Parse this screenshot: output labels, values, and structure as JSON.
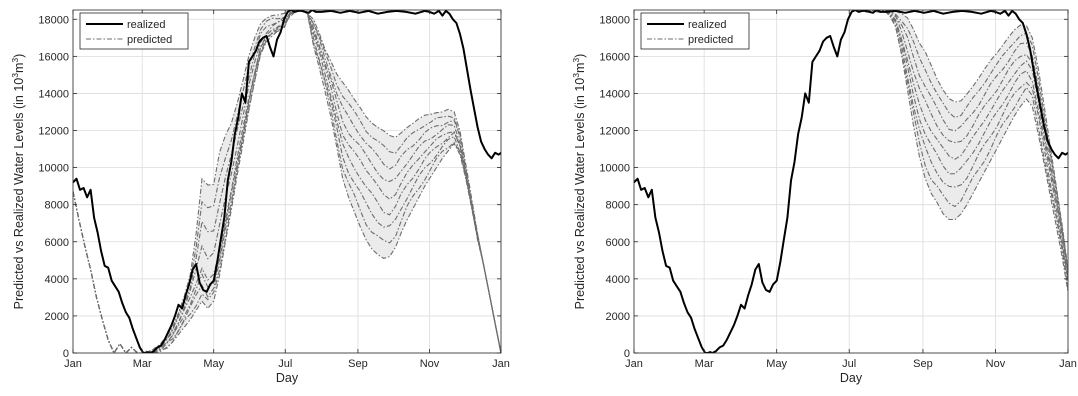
{
  "chart_data": [
    {
      "type": "line",
      "xlabel": "Day",
      "ylabel": "Predicted vs Realized Water Levels (in 10^3 m^3)",
      "ylabel_parts": [
        "Predicted vs Realized Water Levels (in 10",
        "3",
        "m",
        "3",
        ")"
      ],
      "xlim": [
        0,
        365
      ],
      "ylim": [
        0,
        18500
      ],
      "x_ticks": [
        0,
        59,
        120,
        181,
        243,
        304,
        365
      ],
      "x_tick_labels": [
        "Jan",
        "Mar",
        "May",
        "Jul",
        "Sep",
        "Nov",
        "Jan"
      ],
      "y_ticks": [
        0,
        2000,
        4000,
        6000,
        8000,
        10000,
        12000,
        14000,
        16000,
        18000
      ],
      "y_tick_labels": [
        "0",
        "2000",
        "4000",
        "6000",
        "8000",
        "10000",
        "12000",
        "14000",
        "16000",
        "18000"
      ],
      "grid": true,
      "legend_position": "top-left",
      "realized_color": "#000000",
      "predicted_color": "#6e6e6e",
      "band_color": "#ebebeb",
      "series": [
        {
          "name": "realized",
          "style": "solid",
          "x": [
            0,
            3,
            6,
            9,
            12,
            15,
            18,
            21,
            24,
            27,
            30,
            33,
            36,
            39,
            42,
            45,
            48,
            51,
            54,
            57,
            60,
            62,
            64,
            66,
            69,
            72,
            75,
            78,
            81,
            84,
            87,
            90,
            93,
            96,
            99,
            102,
            105,
            108,
            111,
            114,
            117,
            120,
            123,
            126,
            129,
            132,
            135,
            138,
            141,
            144,
            147,
            150,
            153,
            156,
            159,
            162,
            165,
            168,
            171,
            174,
            177,
            180,
            183,
            186,
            189,
            192,
            195,
            198,
            201,
            204,
            207,
            212,
            220,
            228,
            236,
            244,
            252,
            260,
            268,
            276,
            284,
            292,
            300,
            304,
            308,
            312,
            315,
            318,
            321,
            324,
            327,
            330,
            333,
            336,
            339,
            342,
            345,
            348,
            351,
            354,
            357,
            360,
            363,
            365
          ],
          "y": [
            9200,
            9400,
            8800,
            8900,
            8400,
            8800,
            7300,
            6500,
            5500,
            4700,
            4600,
            3900,
            3600,
            3300,
            2700,
            2200,
            1900,
            1300,
            800,
            300,
            0,
            0,
            50,
            0,
            100,
            300,
            400,
            700,
            1100,
            1500,
            2000,
            2600,
            2400,
            3100,
            3700,
            4500,
            4800,
            3800,
            3400,
            3300,
            3700,
            3900,
            4900,
            6100,
            7300,
            9300,
            10300,
            11800,
            12700,
            14000,
            13500,
            15700,
            16000,
            16300,
            16800,
            17000,
            17100,
            16500,
            16000,
            16900,
            17300,
            18000,
            18400,
            18500,
            18400,
            18450,
            18450,
            18400,
            18350,
            18500,
            18400,
            18400,
            18450,
            18350,
            18450,
            18350,
            18450,
            18300,
            18400,
            18450,
            18400,
            18300,
            18450,
            18400,
            18300,
            18450,
            18200,
            18450,
            18300,
            18000,
            17800,
            17200,
            16400,
            15300,
            14200,
            13200,
            12200,
            11400,
            11000,
            10700,
            10500,
            10800,
            10700,
            10800
          ]
        },
        {
          "name": "predicted",
          "style": "dash-dot",
          "center": {
            "x": [
              0,
              5,
              10,
              15,
              20,
              25,
              30,
              35,
              40,
              45,
              50,
              55,
              60,
              63,
              66,
              70,
              75,
              80,
              85,
              90,
              95,
              100,
              105,
              110,
              115,
              120,
              125,
              130,
              135,
              140,
              145,
              150,
              155,
              160,
              165,
              170,
              175,
              180,
              185,
              190,
              195,
              200,
              205,
              210,
              215,
              220,
              225,
              230,
              235,
              240,
              245,
              250,
              255,
              260,
              265,
              270,
              275,
              280,
              285,
              290,
              295,
              300,
              305,
              310,
              315,
              320,
              325,
              330,
              335,
              340,
              345,
              350,
              355,
              360,
              365
            ],
            "y": [
              8700,
              7200,
              5800,
              4500,
              3000,
              1800,
              700,
              0,
              500,
              0,
              300,
              0,
              0,
              0,
              0,
              100,
              300,
              600,
              1000,
              1600,
              2300,
              3000,
              3800,
              4600,
              3900,
              4200,
              5500,
              7200,
              8800,
              10500,
              12100,
              13800,
              15200,
              16500,
              17100,
              17400,
              17600,
              17800,
              18300,
              18500,
              18500,
              18300,
              17400,
              16500,
              15400,
              14300,
              13000,
              11800,
              11200,
              10800,
              10400,
              9900,
              9500,
              9000,
              8500,
              8300,
              8600,
              9200,
              9700,
              10100,
              10500,
              10900,
              11200,
              11500,
              11700,
              11900,
              12000,
              11200,
              9700,
              8000,
              6300,
              4800,
              3200,
              1600,
              0
            ]
          },
          "spread_up": [
            0,
            0,
            0,
            0,
            0,
            0,
            0,
            0,
            0,
            0,
            0,
            0,
            0,
            50,
            100,
            150,
            200,
            300,
            400,
            600,
            800,
            1200,
            2600,
            4800,
            5200,
            4900,
            5300,
            4500,
            3600,
            3000,
            2600,
            2200,
            1800,
            1300,
            1000,
            800,
            600,
            500,
            300,
            100,
            0,
            0,
            600,
            800,
            1000,
            1400,
            2000,
            2800,
            3000,
            2900,
            2800,
            2800,
            2900,
            3200,
            3500,
            3400,
            3000,
            2700,
            2500,
            2300,
            2100,
            1900,
            1700,
            1500,
            1300,
            1200,
            1000,
            800,
            500,
            300,
            100,
            0,
            0,
            0,
            0
          ],
          "spread_down": [
            0,
            0,
            0,
            0,
            0,
            0,
            0,
            0,
            0,
            0,
            0,
            0,
            0,
            0,
            0,
            100,
            200,
            300,
            400,
            600,
            900,
            1200,
            1500,
            1800,
            1500,
            1400,
            1300,
            1200,
            1100,
            900,
            800,
            700,
            500,
            400,
            300,
            300,
            200,
            200,
            100,
            0,
            0,
            0,
            800,
            1100,
            1300,
            1600,
            1900,
            2400,
            2800,
            3200,
            3600,
            3800,
            3900,
            3700,
            3400,
            3100,
            2900,
            2700,
            2500,
            2300,
            2100,
            1900,
            1700,
            1500,
            1200,
            1000,
            700,
            500,
            300,
            200,
            100,
            0,
            0,
            0,
            0
          ],
          "traces": 9
        }
      ]
    },
    {
      "type": "line",
      "xlabel": "Day",
      "ylabel": "Predicted vs Realized Water Levels (in 10^3 m^3)",
      "ylabel_parts": [
        "Predicted vs Realized Water Levels (in 10",
        "3",
        "m",
        "3",
        ")"
      ],
      "xlim": [
        0,
        365
      ],
      "ylim": [
        0,
        18500
      ],
      "x_ticks": [
        0,
        59,
        120,
        181,
        243,
        304,
        365
      ],
      "x_tick_labels": [
        "Jan",
        "Mar",
        "May",
        "Jul",
        "Sep",
        "Nov",
        "Jan"
      ],
      "y_ticks": [
        0,
        2000,
        4000,
        6000,
        8000,
        10000,
        12000,
        14000,
        16000,
        18000
      ],
      "y_tick_labels": [
        "0",
        "2000",
        "4000",
        "6000",
        "8000",
        "10000",
        "12000",
        "14000",
        "16000",
        "18000"
      ],
      "grid": true,
      "legend_position": "top-left",
      "realized_color": "#000000",
      "predicted_color": "#6e6e6e",
      "band_color": "#ebebeb",
      "series": [
        {
          "name": "realized",
          "style": "solid",
          "x": [
            0,
            3,
            6,
            9,
            12,
            15,
            18,
            21,
            24,
            27,
            30,
            33,
            36,
            39,
            42,
            45,
            48,
            51,
            54,
            57,
            60,
            62,
            64,
            66,
            69,
            72,
            75,
            78,
            81,
            84,
            87,
            90,
            93,
            96,
            99,
            102,
            105,
            108,
            111,
            114,
            117,
            120,
            123,
            126,
            129,
            132,
            135,
            138,
            141,
            144,
            147,
            150,
            153,
            156,
            159,
            162,
            165,
            168,
            171,
            174,
            177,
            180,
            183,
            186,
            189,
            192,
            195,
            198,
            201,
            204,
            207,
            212,
            220,
            228,
            236,
            244,
            252,
            260,
            268,
            276,
            284,
            292,
            300,
            304,
            308,
            312,
            315,
            318,
            321,
            324,
            327,
            330,
            333,
            336,
            339,
            342,
            345,
            348,
            351,
            354,
            357,
            360,
            363,
            365
          ],
          "y": [
            9200,
            9400,
            8800,
            8900,
            8400,
            8800,
            7300,
            6500,
            5500,
            4700,
            4600,
            3900,
            3600,
            3300,
            2700,
            2200,
            1900,
            1300,
            800,
            300,
            0,
            0,
            50,
            0,
            100,
            300,
            400,
            700,
            1100,
            1500,
            2000,
            2600,
            2400,
            3100,
            3700,
            4500,
            4800,
            3800,
            3400,
            3300,
            3700,
            3900,
            4900,
            6100,
            7300,
            9300,
            10300,
            11800,
            12700,
            14000,
            13500,
            15700,
            16000,
            16300,
            16800,
            17000,
            17100,
            16500,
            16000,
            16900,
            17300,
            18000,
            18400,
            18500,
            18400,
            18450,
            18450,
            18400,
            18350,
            18500,
            18400,
            18400,
            18450,
            18350,
            18450,
            18350,
            18450,
            18300,
            18400,
            18450,
            18400,
            18300,
            18450,
            18400,
            18300,
            18450,
            18200,
            18450,
            18300,
            18000,
            17800,
            17200,
            16400,
            15300,
            14200,
            13200,
            12200,
            11400,
            11000,
            10700,
            10500,
            10800,
            10700,
            10800
          ]
        },
        {
          "name": "predicted",
          "style": "dash-dot",
          "center": {
            "x": [
              186,
              190,
              195,
              200,
              205,
              210,
              215,
              220,
              225,
              230,
              235,
              240,
              245,
              250,
              255,
              260,
              265,
              270,
              275,
              280,
              285,
              290,
              295,
              300,
              305,
              310,
              315,
              320,
              325,
              330,
              335,
              340,
              345,
              350,
              355,
              360,
              365
            ],
            "y": [
              18500,
              18500,
              18400,
              18500,
              18400,
              18500,
              18300,
              18000,
              17000,
              15800,
              14500,
              13400,
              12600,
              12000,
              11500,
              11000,
              10600,
              10500,
              10700,
              11100,
              11600,
              12100,
              12600,
              13100,
              13600,
              14100,
              14600,
              15100,
              15500,
              15700,
              15200,
              13600,
              11800,
              10000,
              8200,
              6300,
              4200
            ]
          },
          "spread_up": [
            0,
            0,
            0,
            0,
            0,
            0,
            100,
            400,
            1300,
            2300,
            3000,
            3300,
            3600,
            3500,
            3300,
            3200,
            3100,
            3000,
            2900,
            2900,
            2800,
            2700,
            2700,
            2700,
            2600,
            2500,
            2400,
            2300,
            2200,
            2000,
            1800,
            1700,
            1500,
            1200,
            900,
            600,
            300
          ],
          "spread_down": [
            0,
            0,
            0,
            0,
            0,
            0,
            100,
            400,
            900,
            1600,
            2200,
            2800,
            3200,
            3400,
            3400,
            3500,
            3400,
            3300,
            3200,
            3100,
            3000,
            2900,
            2800,
            2700,
            2600,
            2500,
            2400,
            2300,
            2200,
            2000,
            1900,
            1800,
            1600,
            1500,
            1300,
            1100,
            900
          ],
          "traces": 9
        }
      ]
    }
  ]
}
